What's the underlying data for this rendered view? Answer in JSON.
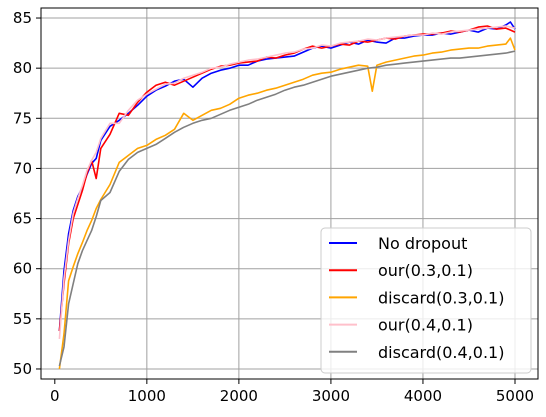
{
  "chart_data": {
    "type": "line",
    "xlim": [
      -150,
      5250
    ],
    "ylim": [
      49,
      86
    ],
    "xticks": [
      1000,
      2000,
      3000,
      4000,
      5000
    ],
    "yticks": [
      50,
      55,
      60,
      65,
      70,
      75,
      80,
      85
    ],
    "grid": true,
    "legend_position": "lower-right",
    "series": [
      {
        "name": "No dropout",
        "color": "#0000ff",
        "points": [
          [
            50,
            53.8
          ],
          [
            100,
            59.8
          ],
          [
            150,
            63.5
          ],
          [
            200,
            65.8
          ],
          [
            250,
            67.2
          ],
          [
            300,
            68.1
          ],
          [
            350,
            69.4
          ],
          [
            400,
            70.5
          ],
          [
            450,
            71.0
          ],
          [
            500,
            72.8
          ],
          [
            600,
            74.2
          ],
          [
            700,
            74.8
          ],
          [
            800,
            75.5
          ],
          [
            900,
            76.3
          ],
          [
            1000,
            77.2
          ],
          [
            1100,
            77.8
          ],
          [
            1200,
            78.2
          ],
          [
            1300,
            78.7
          ],
          [
            1400,
            78.9
          ],
          [
            1500,
            78.1
          ],
          [
            1600,
            79.0
          ],
          [
            1700,
            79.5
          ],
          [
            1800,
            79.8
          ],
          [
            1900,
            80.0
          ],
          [
            2000,
            80.3
          ],
          [
            2100,
            80.3
          ],
          [
            2200,
            80.7
          ],
          [
            2300,
            80.9
          ],
          [
            2400,
            81.0
          ],
          [
            2500,
            81.1
          ],
          [
            2600,
            81.2
          ],
          [
            2700,
            81.6
          ],
          [
            2800,
            82.0
          ],
          [
            2900,
            82.2
          ],
          [
            3000,
            82.0
          ],
          [
            3100,
            82.3
          ],
          [
            3200,
            82.6
          ],
          [
            3300,
            82.4
          ],
          [
            3400,
            82.8
          ],
          [
            3500,
            82.6
          ],
          [
            3600,
            82.5
          ],
          [
            3700,
            83.0
          ],
          [
            3800,
            83.0
          ],
          [
            3900,
            83.2
          ],
          [
            4000,
            83.3
          ],
          [
            4100,
            83.3
          ],
          [
            4200,
            83.5
          ],
          [
            4300,
            83.4
          ],
          [
            4400,
            83.6
          ],
          [
            4500,
            83.8
          ],
          [
            4600,
            83.6
          ],
          [
            4700,
            84.0
          ],
          [
            4800,
            83.9
          ],
          [
            4900,
            84.3
          ],
          [
            4950,
            84.6
          ],
          [
            5000,
            83.9
          ]
        ]
      },
      {
        "name": "our(0.3,0.1)",
        "color": "#ff0000",
        "points": [
          [
            50,
            53.8
          ],
          [
            100,
            58.5
          ],
          [
            150,
            62.5
          ],
          [
            200,
            65.0
          ],
          [
            250,
            66.4
          ],
          [
            300,
            67.8
          ],
          [
            350,
            69.5
          ],
          [
            400,
            70.8
          ],
          [
            450,
            69.0
          ],
          [
            500,
            72.0
          ],
          [
            600,
            73.4
          ],
          [
            700,
            75.5
          ],
          [
            800,
            75.3
          ],
          [
            900,
            76.6
          ],
          [
            1000,
            77.6
          ],
          [
            1100,
            78.3
          ],
          [
            1200,
            78.6
          ],
          [
            1300,
            78.3
          ],
          [
            1400,
            78.7
          ],
          [
            1500,
            79.1
          ],
          [
            1600,
            79.5
          ],
          [
            1700,
            79.9
          ],
          [
            1800,
            80.2
          ],
          [
            1900,
            80.3
          ],
          [
            2000,
            80.5
          ],
          [
            2100,
            80.6
          ],
          [
            2200,
            80.7
          ],
          [
            2300,
            81.1
          ],
          [
            2400,
            81.0
          ],
          [
            2500,
            81.3
          ],
          [
            2600,
            81.5
          ],
          [
            2700,
            81.9
          ],
          [
            2800,
            82.2
          ],
          [
            2900,
            82.0
          ],
          [
            3000,
            82.2
          ],
          [
            3100,
            82.4
          ],
          [
            3200,
            82.3
          ],
          [
            3300,
            82.7
          ],
          [
            3400,
            82.6
          ],
          [
            3500,
            82.8
          ],
          [
            3600,
            83.0
          ],
          [
            3700,
            82.9
          ],
          [
            3800,
            83.2
          ],
          [
            3900,
            83.3
          ],
          [
            4000,
            83.4
          ],
          [
            4100,
            83.4
          ],
          [
            4200,
            83.5
          ],
          [
            4300,
            83.7
          ],
          [
            4400,
            83.6
          ],
          [
            4500,
            83.8
          ],
          [
            4600,
            84.1
          ],
          [
            4700,
            84.2
          ],
          [
            4800,
            83.9
          ],
          [
            4900,
            84.0
          ],
          [
            5000,
            83.6
          ]
        ]
      },
      {
        "name": "discard(0.3,0.1)",
        "color": "#ffa500",
        "points": [
          [
            50,
            50.0
          ],
          [
            100,
            53.5
          ],
          [
            150,
            58.8
          ],
          [
            200,
            60.2
          ],
          [
            250,
            61.5
          ],
          [
            300,
            62.6
          ],
          [
            350,
            63.8
          ],
          [
            400,
            64.8
          ],
          [
            450,
            66.0
          ],
          [
            500,
            66.9
          ],
          [
            600,
            68.4
          ],
          [
            700,
            70.6
          ],
          [
            800,
            71.3
          ],
          [
            900,
            72.0
          ],
          [
            1000,
            72.3
          ],
          [
            1100,
            72.9
          ],
          [
            1200,
            73.3
          ],
          [
            1300,
            73.9
          ],
          [
            1400,
            75.5
          ],
          [
            1500,
            74.8
          ],
          [
            1600,
            75.3
          ],
          [
            1700,
            75.8
          ],
          [
            1800,
            76.0
          ],
          [
            1900,
            76.4
          ],
          [
            2000,
            77.0
          ],
          [
            2100,
            77.3
          ],
          [
            2200,
            77.5
          ],
          [
            2300,
            77.8
          ],
          [
            2400,
            78.0
          ],
          [
            2500,
            78.3
          ],
          [
            2600,
            78.6
          ],
          [
            2700,
            78.9
          ],
          [
            2800,
            79.3
          ],
          [
            2900,
            79.5
          ],
          [
            3000,
            79.6
          ],
          [
            3100,
            79.9
          ],
          [
            3200,
            80.1
          ],
          [
            3300,
            80.3
          ],
          [
            3400,
            80.2
          ],
          [
            3450,
            77.7
          ],
          [
            3500,
            80.3
          ],
          [
            3600,
            80.6
          ],
          [
            3700,
            80.8
          ],
          [
            3800,
            81.0
          ],
          [
            3900,
            81.2
          ],
          [
            4000,
            81.3
          ],
          [
            4100,
            81.5
          ],
          [
            4200,
            81.6
          ],
          [
            4300,
            81.8
          ],
          [
            4400,
            81.9
          ],
          [
            4500,
            82.0
          ],
          [
            4600,
            82.0
          ],
          [
            4700,
            82.2
          ],
          [
            4800,
            82.3
          ],
          [
            4900,
            82.4
          ],
          [
            4950,
            83.0
          ],
          [
            5000,
            81.8
          ]
        ]
      },
      {
        "name": "our(0.4,0.1)",
        "color": "#ffc0cb",
        "points": [
          [
            50,
            53.0
          ],
          [
            100,
            59.0
          ],
          [
            150,
            62.8
          ],
          [
            200,
            65.5
          ],
          [
            250,
            67.0
          ],
          [
            300,
            68.3
          ],
          [
            350,
            69.8
          ],
          [
            400,
            70.8
          ],
          [
            450,
            71.6
          ],
          [
            500,
            73.0
          ],
          [
            600,
            74.5
          ],
          [
            700,
            74.5
          ],
          [
            800,
            75.8
          ],
          [
            900,
            76.8
          ],
          [
            1000,
            77.4
          ],
          [
            1100,
            77.9
          ],
          [
            1200,
            78.4
          ],
          [
            1300,
            78.5
          ],
          [
            1400,
            79.0
          ],
          [
            1500,
            79.3
          ],
          [
            1600,
            79.6
          ],
          [
            1700,
            80.0
          ],
          [
            1800,
            80.1
          ],
          [
            1900,
            80.4
          ],
          [
            2000,
            80.6
          ],
          [
            2100,
            80.8
          ],
          [
            2200,
            80.9
          ],
          [
            2300,
            81.1
          ],
          [
            2400,
            81.3
          ],
          [
            2500,
            81.5
          ],
          [
            2600,
            81.6
          ],
          [
            2700,
            81.9
          ],
          [
            2800,
            82.0
          ],
          [
            2900,
            82.3
          ],
          [
            3000,
            82.2
          ],
          [
            3100,
            82.5
          ],
          [
            3200,
            82.6
          ],
          [
            3300,
            82.7
          ],
          [
            3400,
            82.9
          ],
          [
            3500,
            82.8
          ],
          [
            3600,
            83.0
          ],
          [
            3700,
            83.1
          ],
          [
            3800,
            83.2
          ],
          [
            3900,
            83.3
          ],
          [
            4000,
            83.3
          ],
          [
            4100,
            83.5
          ],
          [
            4200,
            83.4
          ],
          [
            4300,
            83.6
          ],
          [
            4400,
            83.7
          ],
          [
            4500,
            83.8
          ],
          [
            4600,
            83.9
          ],
          [
            4700,
            84.0
          ],
          [
            4800,
            84.1
          ],
          [
            4900,
            84.2
          ],
          [
            5000,
            84.0
          ]
        ]
      },
      {
        "name": "discard(0.4,0.1)",
        "color": "#808080",
        "points": [
          [
            50,
            50.3
          ],
          [
            100,
            52.2
          ],
          [
            150,
            56.5
          ],
          [
            200,
            58.5
          ],
          [
            250,
            60.5
          ],
          [
            300,
            61.8
          ],
          [
            350,
            62.8
          ],
          [
            400,
            63.8
          ],
          [
            450,
            65.2
          ],
          [
            500,
            66.8
          ],
          [
            600,
            67.6
          ],
          [
            700,
            69.7
          ],
          [
            800,
            70.9
          ],
          [
            900,
            71.6
          ],
          [
            1000,
            72.0
          ],
          [
            1100,
            72.4
          ],
          [
            1200,
            73.0
          ],
          [
            1300,
            73.6
          ],
          [
            1400,
            74.1
          ],
          [
            1500,
            74.5
          ],
          [
            1600,
            74.8
          ],
          [
            1700,
            75.0
          ],
          [
            1800,
            75.4
          ],
          [
            1900,
            75.8
          ],
          [
            2000,
            76.1
          ],
          [
            2100,
            76.4
          ],
          [
            2200,
            76.8
          ],
          [
            2300,
            77.1
          ],
          [
            2400,
            77.4
          ],
          [
            2500,
            77.8
          ],
          [
            2600,
            78.1
          ],
          [
            2700,
            78.3
          ],
          [
            2800,
            78.6
          ],
          [
            2900,
            78.9
          ],
          [
            3000,
            79.2
          ],
          [
            3100,
            79.4
          ],
          [
            3200,
            79.6
          ],
          [
            3300,
            79.8
          ],
          [
            3400,
            80.0
          ],
          [
            3500,
            80.1
          ],
          [
            3600,
            80.3
          ],
          [
            3700,
            80.4
          ],
          [
            3800,
            80.5
          ],
          [
            3900,
            80.6
          ],
          [
            4000,
            80.7
          ],
          [
            4100,
            80.8
          ],
          [
            4200,
            80.9
          ],
          [
            4300,
            81.0
          ],
          [
            4400,
            81.0
          ],
          [
            4500,
            81.1
          ],
          [
            4600,
            81.2
          ],
          [
            4700,
            81.3
          ],
          [
            4800,
            81.4
          ],
          [
            4900,
            81.5
          ],
          [
            5000,
            81.7
          ]
        ]
      }
    ]
  }
}
